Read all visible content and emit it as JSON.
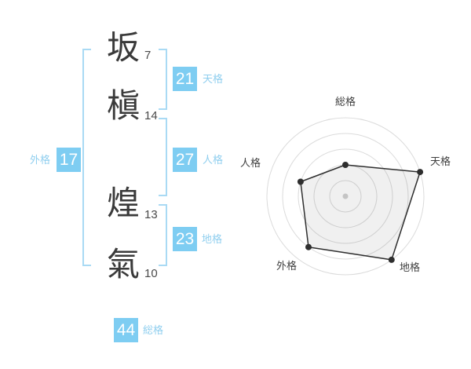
{
  "colors": {
    "badge_blue": "#7ecdf2",
    "label_blue": "#90cfef",
    "bracket_blue": "#a9daf4",
    "text_dark": "#3a3a3a",
    "stroke_num": "#4a4a4a",
    "radar_grid": "#dbdbdb",
    "radar_line": "#2e2e2e",
    "radar_fill": "rgba(0,0,0,0.06)",
    "center_dot": "#c4c4c4",
    "radar_text": "#3f3f3f"
  },
  "name": {
    "characters": [
      {
        "char": "坂",
        "strokes": "7"
      },
      {
        "char": "槇",
        "strokes": "14"
      },
      {
        "char": "煌",
        "strokes": "13"
      },
      {
        "char": "氣",
        "strokes": "10"
      }
    ]
  },
  "kaku": {
    "tenkaku": {
      "value": "21",
      "label": "天格"
    },
    "jinkaku": {
      "value": "27",
      "label": "人格"
    },
    "chikaku": {
      "value": "23",
      "label": "地格"
    },
    "gaikaku": {
      "value": "17",
      "label": "外格"
    },
    "soukaku": {
      "value": "44",
      "label": "総格"
    }
  },
  "chart_data": {
    "type": "radar",
    "axes": [
      "総格",
      "天格",
      "地格",
      "外格",
      "人格"
    ],
    "values": [
      2,
      5,
      5,
      4,
      3
    ],
    "max": 5,
    "rings": 5,
    "start_angle_deg": 90,
    "direction": "clockwise",
    "grid": "concentric-circles",
    "legend": "none"
  }
}
